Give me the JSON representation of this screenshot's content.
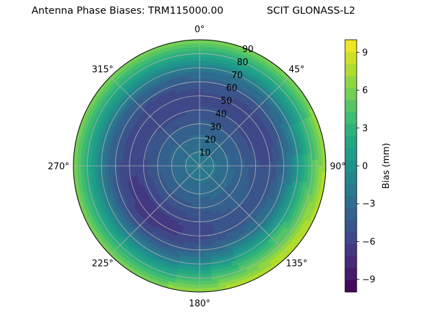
{
  "chart_data": {
    "type": "heatmap",
    "projection": "polar",
    "title_left": "Antenna Phase Biases: TRM115000.00",
    "title_right": "SCIT GLONASS-L2",
    "angular_ticks": [
      "0°",
      "45°",
      "90°",
      "135°",
      "180°",
      "225°",
      "270°",
      "315°"
    ],
    "radial_ticks": [
      "10",
      "20",
      "30",
      "40",
      "50",
      "60",
      "70",
      "80",
      "90"
    ],
    "radial_range": [
      0,
      90
    ],
    "angular_zero": "top",
    "angular_direction": "clockwise",
    "grid": true,
    "colormap": "viridis",
    "colorbar": {
      "label": "Bias (mm)",
      "range": [
        -10,
        10
      ],
      "levels": 21,
      "tick_values": [
        -9,
        -6,
        -3,
        0,
        3,
        6,
        9
      ],
      "tick_labels": [
        "−9",
        "−6",
        "−3",
        "0",
        "3",
        "6",
        "9"
      ],
      "placement": "right"
    },
    "field_description_estimates": {
      "center_value": -1.5,
      "mid_ring_value": -4.5,
      "outer_edge_value": 6.5,
      "low_region_azimuths_deg": [
        200,
        250,
        330,
        60
      ],
      "high_region_azimuths_deg": [
        110,
        150
      ]
    }
  }
}
